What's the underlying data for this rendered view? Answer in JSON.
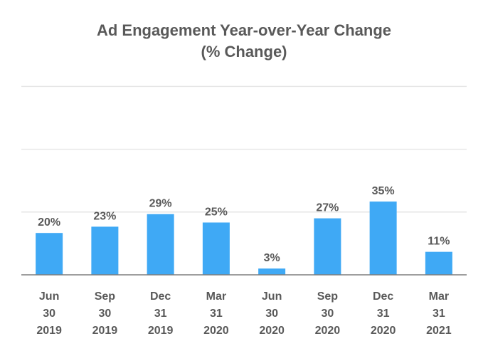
{
  "chart_data": {
    "type": "bar",
    "title": "Ad Engagement Year-over-Year Change",
    "subtitle": "(% Change)",
    "categories": [
      [
        "Jun",
        "30",
        "2019"
      ],
      [
        "Sep",
        "30",
        "2019"
      ],
      [
        "Dec",
        "31",
        "2019"
      ],
      [
        "Mar",
        "31",
        "2020"
      ],
      [
        "Jun",
        "30",
        "2020"
      ],
      [
        "Sep",
        "30",
        "2020"
      ],
      [
        "Dec",
        "31",
        "2020"
      ],
      [
        "Mar",
        "31",
        "2021"
      ]
    ],
    "values": [
      20,
      23,
      29,
      25,
      3,
      27,
      35,
      11
    ],
    "data_labels": [
      "20%",
      "23%",
      "29%",
      "25%",
      "3%",
      "27%",
      "35%",
      "11%"
    ],
    "xlabel": "",
    "ylabel": "",
    "ylim": [
      0,
      90
    ],
    "gridlines": [
      30,
      60,
      90
    ],
    "grid": true,
    "legend": "none",
    "bar_color": "#3fa9f5",
    "text_color": "#595959",
    "grid_color": "#e6e6e6",
    "axis_color": "#7f7f7f"
  }
}
